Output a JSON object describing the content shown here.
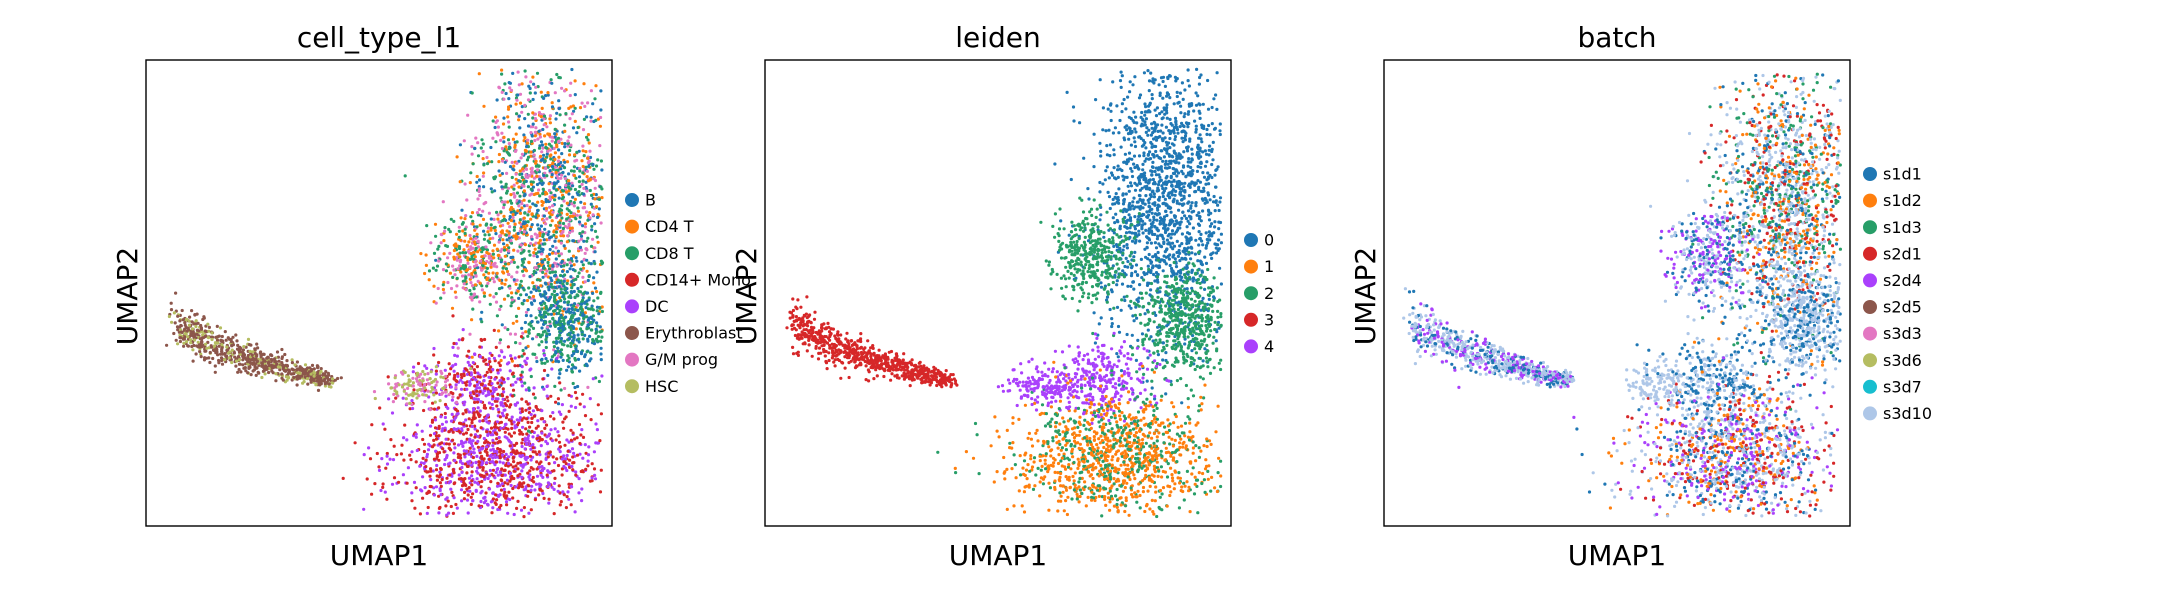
{
  "chart_data": [
    {
      "type": "scatter",
      "title": "cell_type_l1",
      "xlabel": "UMAP1",
      "ylabel": "UMAP2",
      "ticks": "none",
      "legend_placement": "right",
      "categories": [
        "B",
        "CD4 T",
        "CD8 T",
        "CD14+ Mono",
        "DC",
        "Erythroblast",
        "G/M prog",
        "HSC"
      ],
      "colors": [
        "#1f77b4",
        "#ff7f0e",
        "#279e68",
        "#d62728",
        "#aa40fc",
        "#8c564b",
        "#e377c2",
        "#b5bd61"
      ]
    },
    {
      "type": "scatter",
      "title": "leiden",
      "xlabel": "UMAP1",
      "ylabel": "UMAP2",
      "ticks": "none",
      "legend_placement": "right",
      "categories": [
        "0",
        "1",
        "2",
        "3",
        "4"
      ],
      "colors": [
        "#1f77b4",
        "#ff7f0e",
        "#279e68",
        "#d62728",
        "#aa40fc"
      ]
    },
    {
      "type": "scatter",
      "title": "batch",
      "xlabel": "UMAP1",
      "ylabel": "UMAP2",
      "ticks": "none",
      "legend_placement": "right",
      "categories": [
        "s1d1",
        "s1d2",
        "s1d3",
        "s2d1",
        "s2d4",
        "s2d5",
        "s3d3",
        "s3d6",
        "s3d7",
        "s3d10"
      ],
      "colors": [
        "#1f77b4",
        "#ff7f0e",
        "#279e68",
        "#d62728",
        "#aa40fc",
        "#8c564b",
        "#e377c2",
        "#b5bd61",
        "#17becf",
        "#aec7e8"
      ]
    }
  ]
}
